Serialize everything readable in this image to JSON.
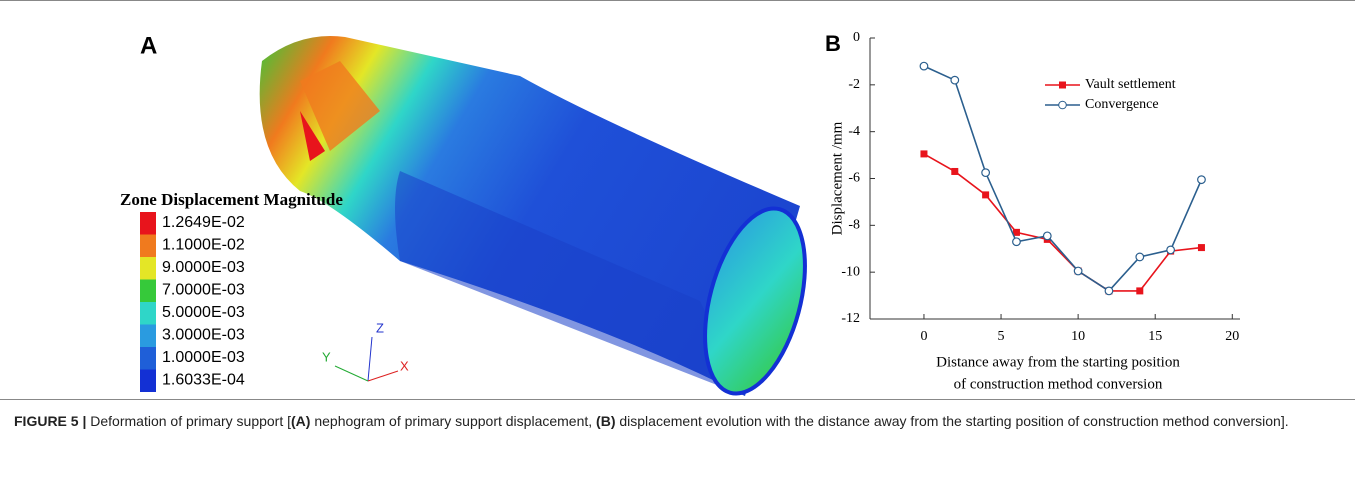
{
  "panel_a": {
    "label": "A",
    "legend": {
      "title": "Zone Displacement Magnitude",
      "items": [
        {
          "label": "1.2649E-02",
          "color": "#e8141c"
        },
        {
          "label": "1.1000E-02",
          "color": "#f07a1e"
        },
        {
          "label": "9.0000E-03",
          "color": "#e4e626"
        },
        {
          "label": "7.0000E-03",
          "color": "#36c93a"
        },
        {
          "label": "5.0000E-03",
          "color": "#2fd6c8"
        },
        {
          "label": "3.0000E-03",
          "color": "#2a9be0"
        },
        {
          "label": "1.0000E-03",
          "color": "#1f5fd8"
        },
        {
          "label": "1.6033E-04",
          "color": "#1330d4"
        }
      ]
    },
    "axes": {
      "z": "Z",
      "y": "Y",
      "x": "X"
    }
  },
  "chart_data": {
    "type": "line",
    "label": "B",
    "xlabel": [
      "Distance away from the starting position",
      "of construction method conversion"
    ],
    "ylabel": "Displacement /mm",
    "x": [
      0,
      2,
      4,
      6,
      8,
      10,
      12,
      14,
      16,
      18
    ],
    "series": [
      {
        "name": "Vault settlement",
        "color": "#e8141c",
        "marker": "square",
        "values": [
          -4.95,
          -5.7,
          -6.7,
          -8.3,
          -8.6,
          -9.95,
          -10.8,
          -10.8,
          -9.1,
          -8.95
        ]
      },
      {
        "name": "Convergence",
        "color": "#2b5f8e",
        "marker": "circle",
        "values": [
          -1.2,
          -1.8,
          -5.75,
          -8.7,
          -8.45,
          -9.95,
          -10.8,
          -9.35,
          -9.05,
          -6.05
        ]
      }
    ],
    "xlim": [
      -3.5,
      20.5
    ],
    "xticks": [
      0,
      5,
      10,
      15,
      20
    ],
    "ylim": [
      -12,
      0
    ],
    "yticks": [
      -12,
      -10,
      -8,
      -6,
      -4,
      -2,
      0
    ]
  },
  "caption": {
    "label": "FIGURE 5 |",
    "parts": [
      "Deformation of primary support [",
      "(A)",
      " nephogram of primary support displacement, ",
      "(B)",
      " displacement evolution with the distance away from the starting position of construction method conversion]."
    ]
  }
}
